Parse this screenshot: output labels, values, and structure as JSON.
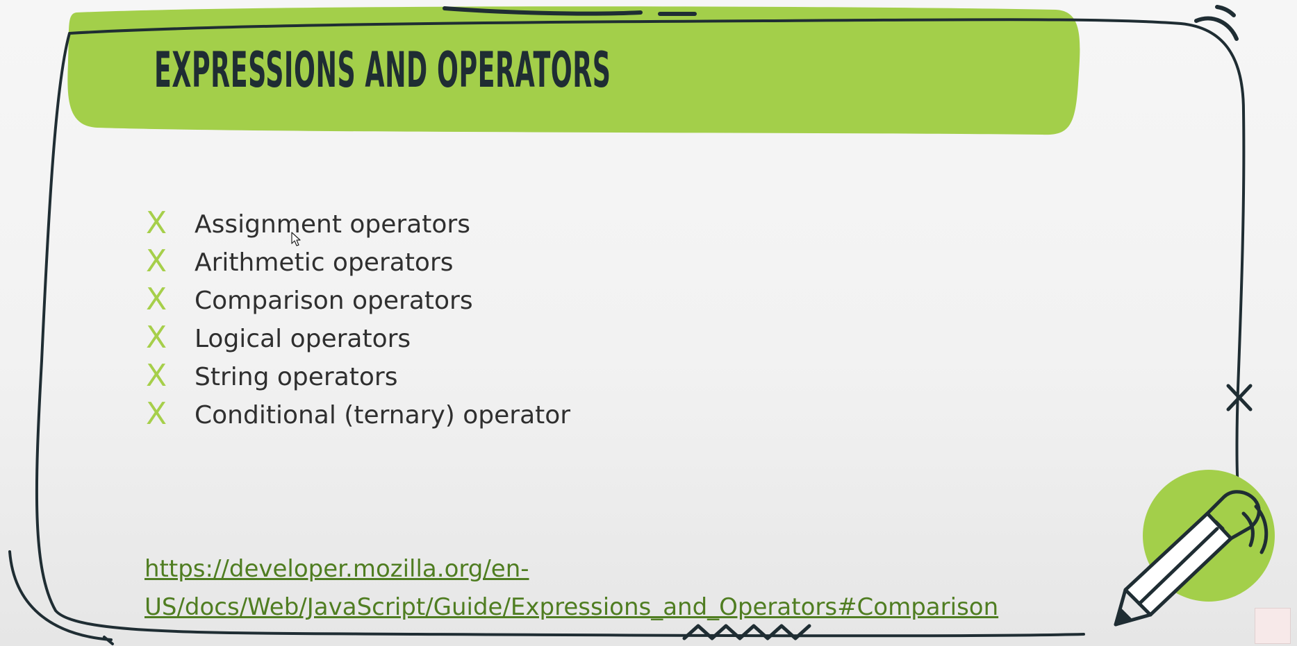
{
  "slide": {
    "title": "Expressions and operators",
    "bullet_mark": "X",
    "items": [
      "Assignment operators",
      "Arithmetic operators",
      "Comparison operators",
      "Logical operators",
      "String operators",
      "Conditional (ternary) operator"
    ],
    "link": {
      "line1": "https://developer.mozilla.org/en-",
      "line2": "US/docs/Web/JavaScript/Guide/Expressions_and_Operators#Comparison"
    }
  },
  "colors": {
    "title_band": "#a3cf4a",
    "bullet": "#a6cf4a",
    "link": "#4f7d21",
    "frame_stroke": "#1f2d33"
  },
  "icons": {
    "decoration": "pencil-icon",
    "watermark": "channel-logo"
  }
}
